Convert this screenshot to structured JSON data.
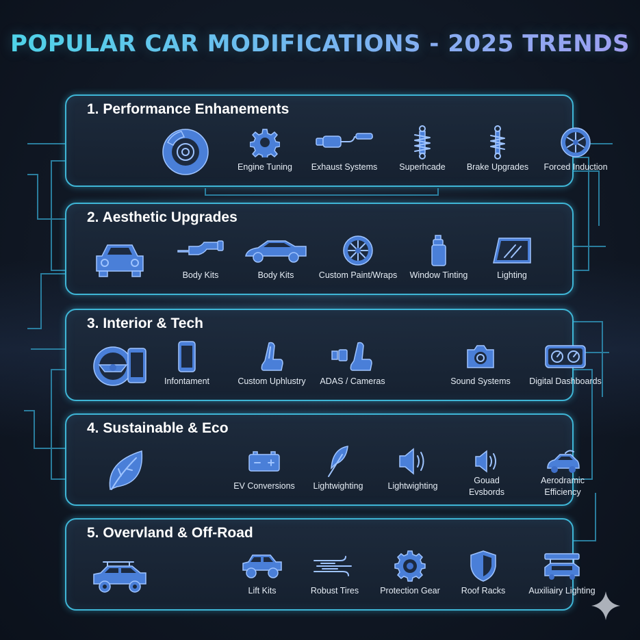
{
  "title": "POPULAR CAR MODIFICATIONS - 2025 TRENDS",
  "colors": {
    "accent": "#3fb6d6",
    "icon": "#4a7fd8",
    "icon_light": "#9fc4ff",
    "text": "#ffffff"
  },
  "sections": [
    {
      "title": "1. Performance Enhanements",
      "hero_icon": "brake-disc-icon",
      "items": [
        {
          "label": "Engine Tuning",
          "icon": "gear-icon"
        },
        {
          "label": "Exhaust Systems",
          "icon": "exhaust-pipe-icon"
        },
        {
          "label": "Superhcade",
          "icon": "coilover-spring-icon"
        },
        {
          "label": "Brake Upgrades",
          "icon": "spring-icon"
        },
        {
          "label": "Forced Induction",
          "icon": "turbo-icon"
        }
      ]
    },
    {
      "title": "2. Aesthetic Upgrades",
      "hero_icon": "car-front-icon",
      "items": [
        {
          "label": "Body Kits",
          "icon": "pipe-icon"
        },
        {
          "label": "Body Kits",
          "icon": "sports-car-icon"
        },
        {
          "label": "Custom Paint/Wraps",
          "icon": "wheel-icon"
        },
        {
          "label": "Window Tinting",
          "icon": "spray-can-icon"
        },
        {
          "label": "Lighting",
          "icon": "window-glass-icon"
        }
      ]
    },
    {
      "title": "3. Interior & Tech",
      "hero_icon": "steering-wheel-phone-icon",
      "items": [
        {
          "label": "Infontament",
          "icon": "phone-icon"
        },
        {
          "label": "Custom Uphlustry",
          "icon": "seat-icon"
        },
        {
          "label": "ADAS / Cameras",
          "icon": "camera-seat-icon"
        },
        {
          "label": "Sound Systems",
          "icon": "camera-icon"
        },
        {
          "label": "Digital Dashboards",
          "icon": "dashboard-gauges-icon"
        }
      ]
    },
    {
      "title": "4. Sustainable & Eco",
      "hero_icon": "leaf-icon",
      "items": [
        {
          "label": "EV Conversions",
          "icon": "battery-icon"
        },
        {
          "label": "Lightwighting",
          "icon": "feather-icon"
        },
        {
          "label": "Lightwighting",
          "icon": "speaker-icon"
        },
        {
          "label": "Gouad Evsbords",
          "icon": "speaker-small-icon"
        },
        {
          "label": "Aerodramic Efficiency",
          "icon": "aero-car-icon"
        }
      ]
    },
    {
      "title": "5. Overvland & Off-Road",
      "hero_icon": "suv-icon",
      "items": [
        {
          "label": "Lift Kits",
          "icon": "jeep-icon"
        },
        {
          "label": "Robust Tires",
          "icon": "wind-icon"
        },
        {
          "label": "Protection Gear",
          "icon": "tire-gear-icon"
        },
        {
          "label": "Roof Racks",
          "icon": "shield-icon"
        },
        {
          "label": "Auxiliairy Lighting",
          "icon": "roof-rack-icon"
        }
      ]
    }
  ]
}
